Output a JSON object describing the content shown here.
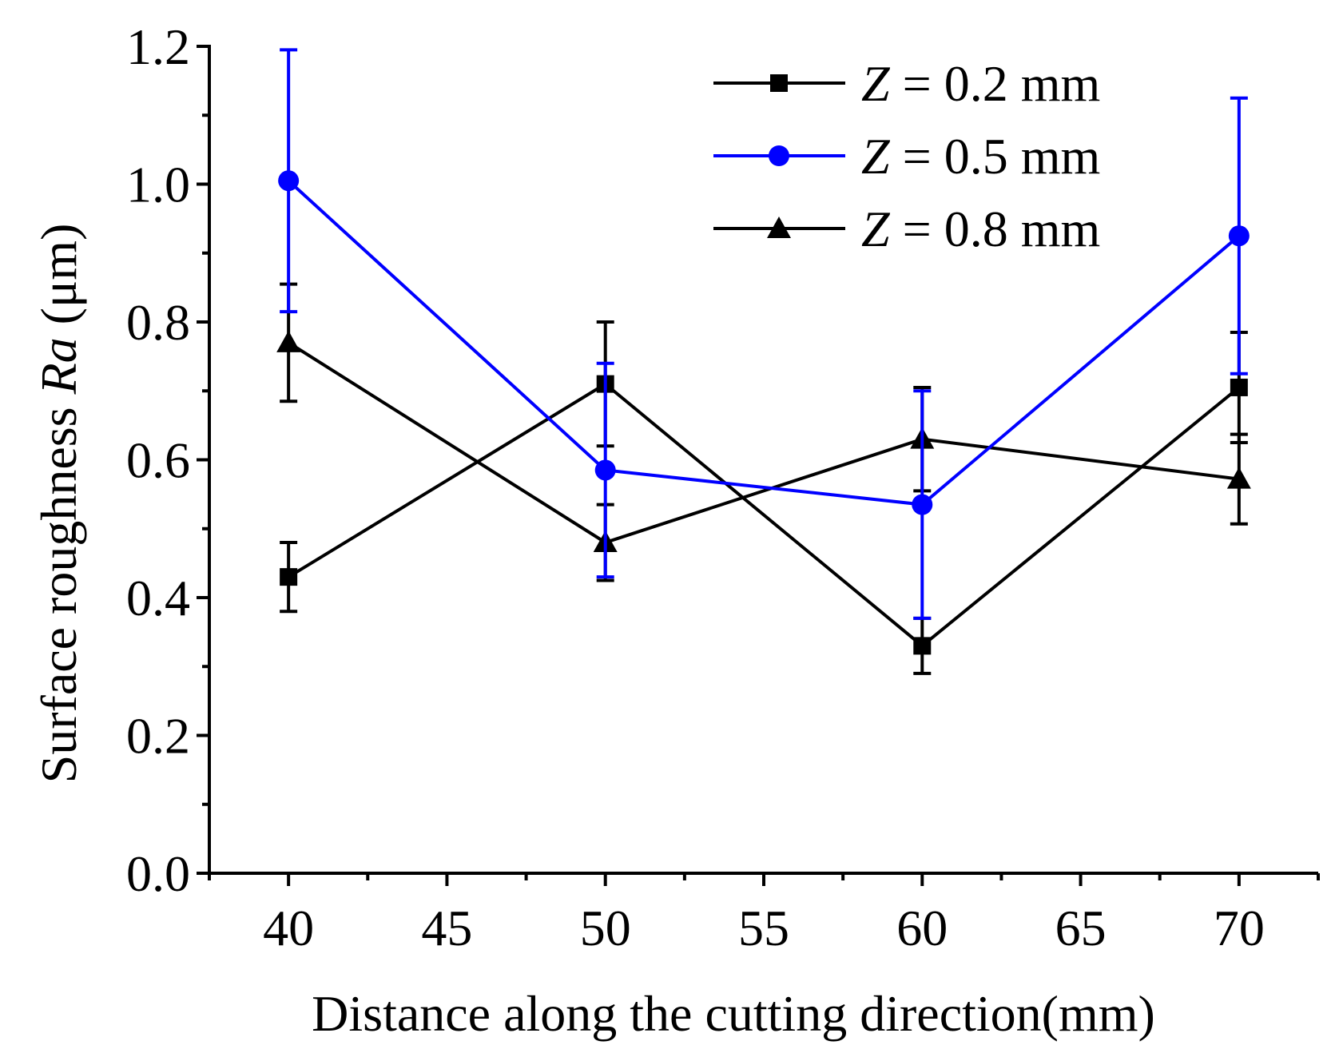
{
  "chart_data": {
    "type": "line",
    "title": "",
    "xlabel": "Distance along the cutting direction(mm)",
    "ylabel": {
      "prefix": "Surface roughness ",
      "italic": "Ra",
      "suffix": " (μm)"
    },
    "xlim": [
      37.5,
      72.5
    ],
    "ylim": [
      0,
      1.2
    ],
    "x_ticks": [
      40,
      45,
      50,
      55,
      60,
      65,
      70
    ],
    "x_tick_labels": [
      "40",
      "45",
      "50",
      "55",
      "60",
      "65",
      "70"
    ],
    "y_ticks": [
      0,
      0.2,
      0.4,
      0.6,
      0.8,
      1.0,
      1.2
    ],
    "y_tick_labels": [
      "0.0",
      "0.2",
      "0.4",
      "0.6",
      "0.8",
      "1.0",
      "1.2"
    ],
    "grid": false,
    "legend_position": "top-right",
    "x": [
      40,
      50,
      60,
      70
    ],
    "series": [
      {
        "name": "Z = 0.2 mm",
        "legend_var": "Z",
        "legend_text": " = 0.2 mm",
        "marker": "square",
        "color": "#000000",
        "values": [
          0.43,
          0.71,
          0.33,
          0.705
        ],
        "err": [
          0.05,
          0.09,
          0.04,
          0.08
        ]
      },
      {
        "name": "Z = 0.5 mm",
        "legend_var": "Z",
        "legend_text": " = 0.5 mm",
        "marker": "circle",
        "color": "#0000ff",
        "values": [
          1.005,
          0.585,
          0.535,
          0.925
        ],
        "err": [
          0.19,
          0.155,
          0.165,
          0.2
        ]
      },
      {
        "name": "Z = 0.8 mm",
        "legend_var": "Z",
        "legend_text": " = 0.8 mm",
        "marker": "triangle",
        "color": "#000000",
        "values": [
          0.77,
          0.48,
          0.63,
          0.572
        ],
        "err": [
          0.085,
          0.055,
          0.075,
          0.065
        ]
      }
    ]
  }
}
